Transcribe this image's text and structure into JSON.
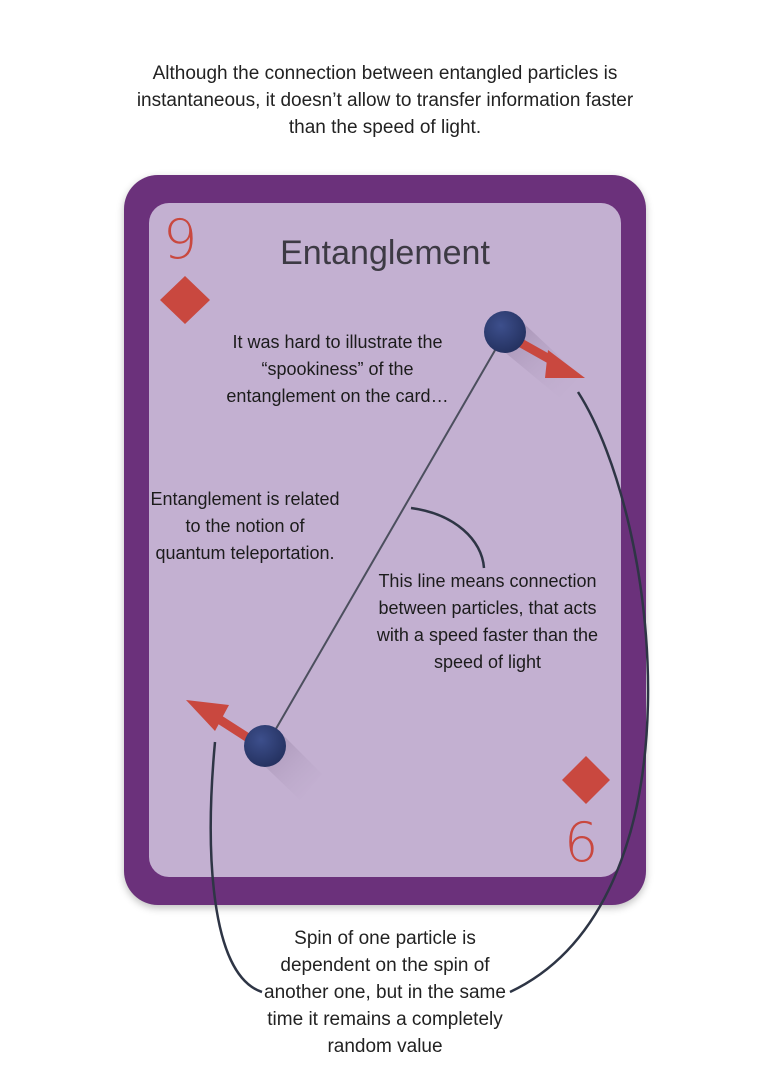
{
  "top_note": "Although the connection between entangled particles is instantaneous, it doesn’t allow to transfer information faster than the speed of light.",
  "card": {
    "title": "Entanglement",
    "rank_top": "9",
    "rank_bottom": "6",
    "annotations": {
      "spookiness": "It was hard to illustrate the “spookiness” of the entanglement on the card…",
      "teleportation": "Entanglement is related to the notion of quantum teleportation.",
      "line_meaning": "This line means connection between particles, that acts with a speed faster than the speed of light"
    }
  },
  "bottom_note": "Spin of one particle is dependent on the spin of another one, but in the same time it remains a completely random value",
  "colors": {
    "card_border": "#6b317b",
    "card_face": "#c3b0d1",
    "suit_red": "#c9483f",
    "particle": "#2f3f75",
    "connector": "#2e3545"
  }
}
